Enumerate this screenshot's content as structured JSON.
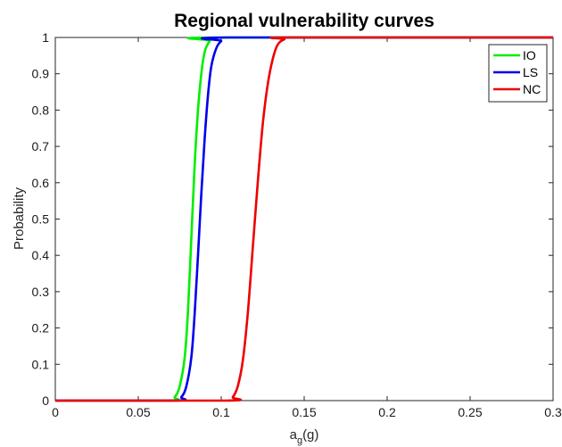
{
  "chart_data": {
    "type": "line",
    "title": "Regional vulnerability curves",
    "xlabel": {
      "base": "a",
      "subscript": "g",
      "suffix": "(g)"
    },
    "ylabel": "Probability",
    "xlim": [
      0,
      0.3
    ],
    "ylim": [
      0,
      1
    ],
    "x_ticks": [
      "0",
      "0.05",
      "0.1",
      "0.15",
      "0.2",
      "0.25",
      "0.3"
    ],
    "y_ticks": [
      "0",
      "0.1",
      "0.2",
      "0.3",
      "0.4",
      "0.5",
      "0.6",
      "0.7",
      "0.8",
      "0.9",
      "1"
    ],
    "grid": false,
    "legend_position": "top-right",
    "series": [
      {
        "name": "IO",
        "color": "#00ee00",
        "points": [
          [
            0,
            0
          ],
          [
            0.068,
            0
          ],
          [
            0.072,
            0.01
          ],
          [
            0.075,
            0.04
          ],
          [
            0.078,
            0.12
          ],
          [
            0.08,
            0.25
          ],
          [
            0.082,
            0.45
          ],
          [
            0.084,
            0.65
          ],
          [
            0.086,
            0.8
          ],
          [
            0.088,
            0.9
          ],
          [
            0.09,
            0.96
          ],
          [
            0.093,
            0.99
          ],
          [
            0.096,
            1.0
          ],
          [
            0.3,
            1.0
          ]
        ]
      },
      {
        "name": "LS",
        "color": "#0000ee",
        "points": [
          [
            0,
            0
          ],
          [
            0.072,
            0
          ],
          [
            0.076,
            0.01
          ],
          [
            0.079,
            0.04
          ],
          [
            0.082,
            0.12
          ],
          [
            0.084,
            0.24
          ],
          [
            0.086,
            0.4
          ],
          [
            0.088,
            0.57
          ],
          [
            0.09,
            0.72
          ],
          [
            0.092,
            0.84
          ],
          [
            0.094,
            0.92
          ],
          [
            0.097,
            0.97
          ],
          [
            0.1,
            0.99
          ],
          [
            0.104,
            1.0
          ],
          [
            0.3,
            1.0
          ]
        ]
      },
      {
        "name": "NC",
        "color": "#ee0000",
        "points": [
          [
            0,
            0
          ],
          [
            0.103,
            0
          ],
          [
            0.107,
            0.01
          ],
          [
            0.11,
            0.04
          ],
          [
            0.113,
            0.11
          ],
          [
            0.116,
            0.24
          ],
          [
            0.119,
            0.42
          ],
          [
            0.122,
            0.6
          ],
          [
            0.125,
            0.76
          ],
          [
            0.128,
            0.87
          ],
          [
            0.131,
            0.94
          ],
          [
            0.134,
            0.98
          ],
          [
            0.138,
            0.995
          ],
          [
            0.143,
            1.0
          ],
          [
            0.3,
            1.0
          ]
        ]
      }
    ]
  }
}
